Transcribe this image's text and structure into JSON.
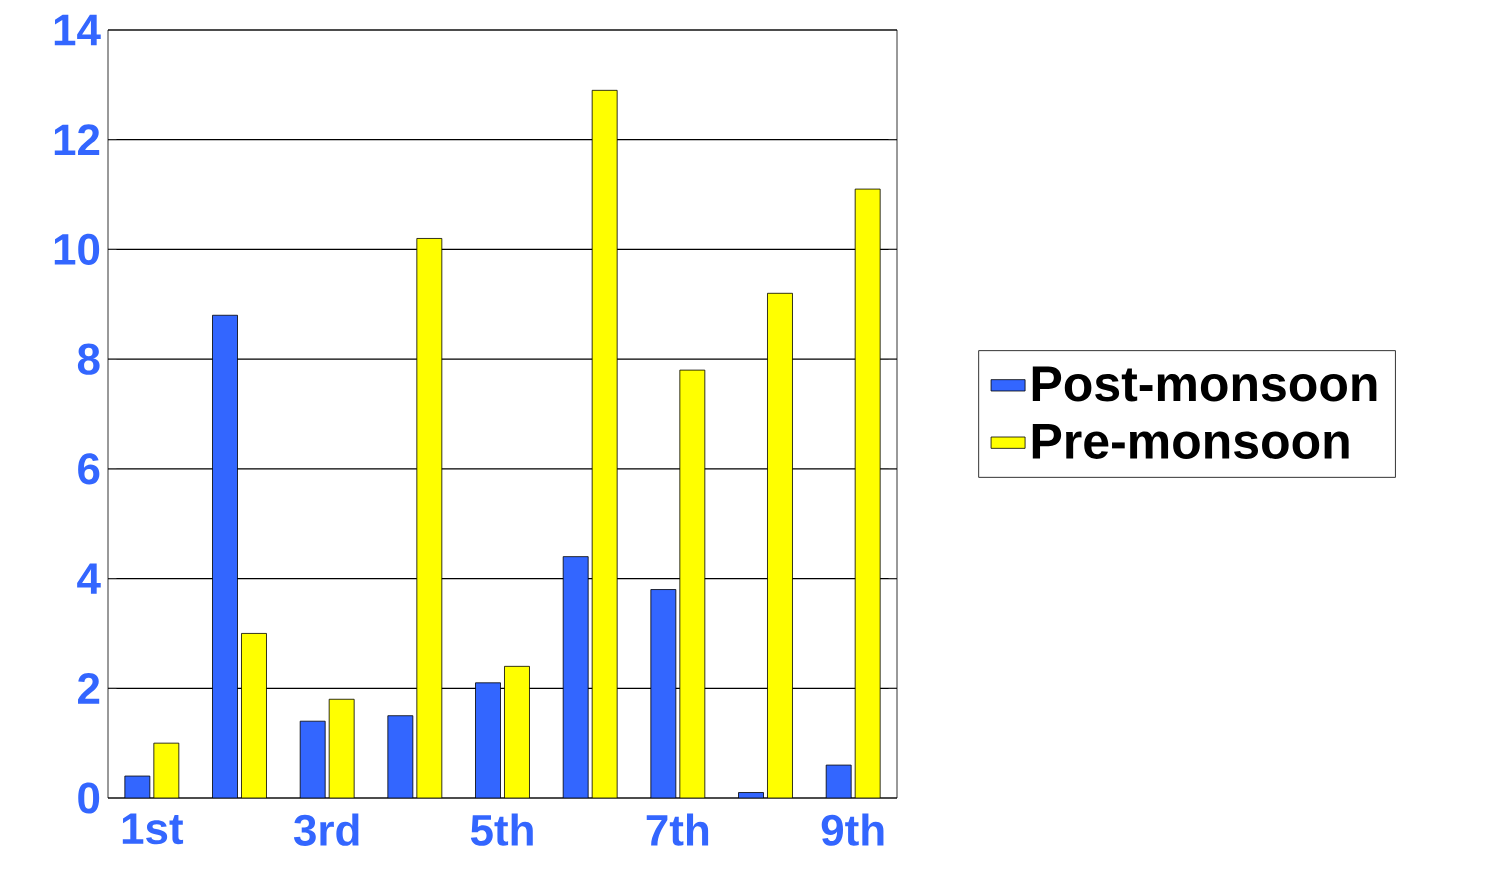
{
  "chart_data": {
    "type": "bar",
    "categories": [
      "1st",
      null,
      "3rd",
      null,
      "5th",
      null,
      "7th",
      null,
      "9th"
    ],
    "series": [
      {
        "name": "Post-monsoon",
        "color": "#3366ff",
        "values": [
          0.4,
          8.8,
          1.4,
          1.5,
          2.1,
          4.4,
          3.8,
          0.1,
          0.6
        ]
      },
      {
        "name": "Pre-monsoon",
        "color": "#ffff00",
        "values": [
          1.0,
          3.0,
          1.8,
          10.2,
          2.4,
          12.9,
          7.8,
          9.2,
          11.1
        ]
      }
    ],
    "ylim": [
      0,
      14
    ],
    "yticks": [
      0,
      2,
      4,
      6,
      8,
      10,
      12,
      14
    ],
    "grid": "y",
    "legend": "right"
  }
}
